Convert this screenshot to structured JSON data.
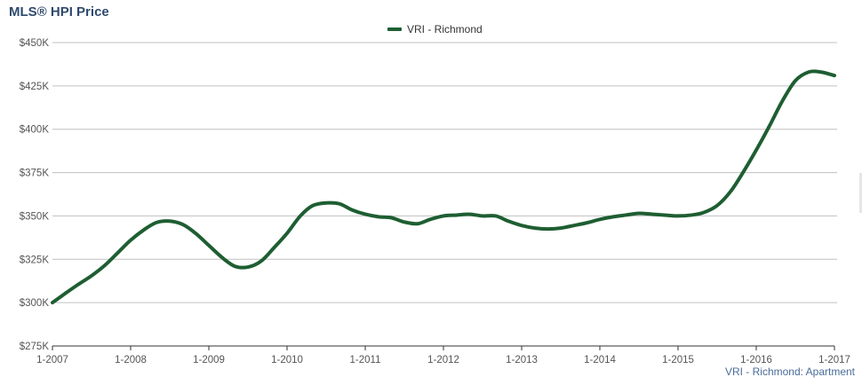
{
  "chart_data": {
    "type": "line",
    "title": "MLS® HPI Price",
    "ylim": [
      275000,
      450000
    ],
    "yticks": [
      275000,
      300000,
      325000,
      350000,
      375000,
      400000,
      425000,
      450000
    ],
    "ytick_labels": [
      "$275K",
      "$300K",
      "$325K",
      "$350K",
      "$375K",
      "$400K",
      "$425K",
      "$450K"
    ],
    "xlim": [
      2007,
      2017
    ],
    "xticks": [
      2007,
      2008,
      2009,
      2010,
      2011,
      2012,
      2013,
      2014,
      2015,
      2016,
      2017
    ],
    "xtick_labels": [
      "1-2007",
      "1-2008",
      "1-2009",
      "1-2010",
      "1-2011",
      "1-2012",
      "1-2013",
      "1-2014",
      "1-2015",
      "1-2016",
      "1-2017"
    ],
    "grid": true,
    "legend": "top-center",
    "series": [
      {
        "name": "VRI - Richmond",
        "color": "#1e5e32",
        "x": [
          2007.0,
          2007.17,
          2007.33,
          2007.5,
          2007.67,
          2007.83,
          2008.0,
          2008.17,
          2008.33,
          2008.5,
          2008.67,
          2008.83,
          2009.0,
          2009.17,
          2009.33,
          2009.5,
          2009.67,
          2009.83,
          2010.0,
          2010.17,
          2010.33,
          2010.5,
          2010.67,
          2010.83,
          2011.0,
          2011.17,
          2011.33,
          2011.5,
          2011.67,
          2011.83,
          2012.0,
          2012.17,
          2012.33,
          2012.5,
          2012.67,
          2012.83,
          2013.0,
          2013.17,
          2013.33,
          2013.5,
          2013.67,
          2013.83,
          2014.0,
          2014.17,
          2014.33,
          2014.5,
          2014.67,
          2014.83,
          2015.0,
          2015.17,
          2015.33,
          2015.5,
          2015.67,
          2015.83,
          2016.0,
          2016.17,
          2016.33,
          2016.5,
          2016.67,
          2016.83,
          2017.0
        ],
        "values": [
          300000,
          305500,
          310500,
          315500,
          321500,
          328500,
          336000,
          342000,
          346200,
          347000,
          345000,
          340000,
          333000,
          326000,
          321000,
          320500,
          324000,
          331500,
          340000,
          350000,
          356000,
          357500,
          357000,
          353500,
          351000,
          349500,
          349000,
          346500,
          345500,
          348000,
          350000,
          350500,
          351000,
          350000,
          350000,
          347000,
          344500,
          343000,
          342500,
          343000,
          344500,
          346000,
          348000,
          349500,
          350500,
          351500,
          351000,
          350500,
          350000,
          350500,
          352000,
          356000,
          364000,
          375000,
          388000,
          402000,
          416000,
          428000,
          433000,
          433000,
          431000
        ]
      }
    ],
    "footer": "VRI - Richmond: Apartment"
  }
}
